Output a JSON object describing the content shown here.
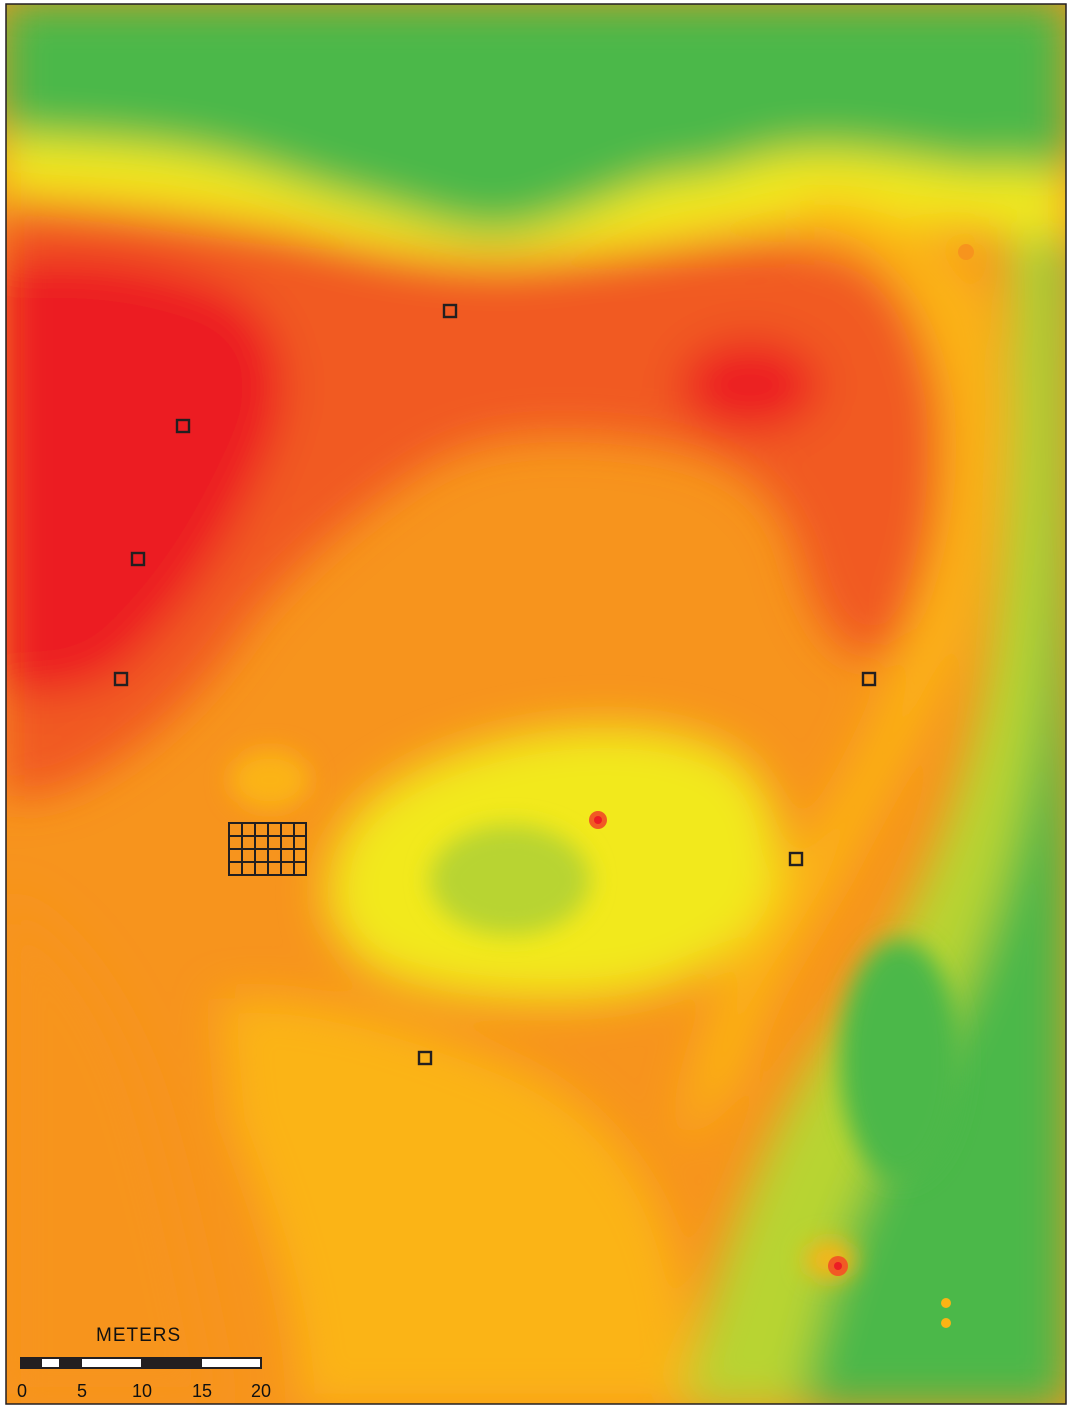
{
  "map": {
    "colors": {
      "high": "#ec1c24",
      "mid_high": "#f15a24",
      "mid": "#f7941d",
      "mid_low": "#fbb414",
      "low_yellow": "#f2e91a",
      "low_green": "#b8d432",
      "lowest": "#4cb848",
      "marker_stroke": "#231f20"
    },
    "markers": [
      {
        "id": "m1"
      },
      {
        "id": "m2"
      },
      {
        "id": "m3"
      },
      {
        "id": "m4"
      },
      {
        "id": "m5"
      },
      {
        "id": "m6"
      },
      {
        "id": "m7"
      }
    ],
    "excavation_grid": {
      "columns": 6,
      "rows": 4
    }
  },
  "scale_bar": {
    "title": "METERS",
    "ticks": [
      "0",
      "5",
      "10",
      "15",
      "20"
    ]
  }
}
